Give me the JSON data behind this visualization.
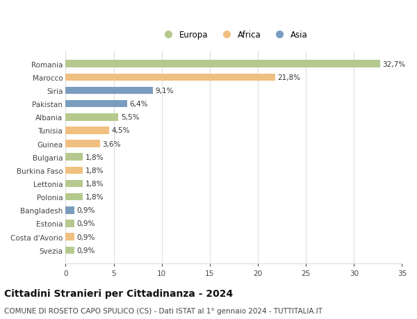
{
  "countries": [
    "Romania",
    "Marocco",
    "Siria",
    "Pakistan",
    "Albania",
    "Tunisia",
    "Guinea",
    "Bulgaria",
    "Burkina Faso",
    "Lettonia",
    "Polonia",
    "Bangladesh",
    "Estonia",
    "Costa d'Avorio",
    "Svezia"
  ],
  "values": [
    32.7,
    21.8,
    9.1,
    6.4,
    5.5,
    4.5,
    3.6,
    1.8,
    1.8,
    1.8,
    1.8,
    0.9,
    0.9,
    0.9,
    0.9
  ],
  "labels": [
    "32,7%",
    "21,8%",
    "9,1%",
    "6,4%",
    "5,5%",
    "4,5%",
    "3,6%",
    "1,8%",
    "1,8%",
    "1,8%",
    "1,8%",
    "0,9%",
    "0,9%",
    "0,9%",
    "0,9%"
  ],
  "colors": [
    "#b5c98e",
    "#f0c080",
    "#7a9cbf",
    "#7a9cbf",
    "#b5c98e",
    "#f0c080",
    "#f0c080",
    "#b5c98e",
    "#f0c080",
    "#b5c98e",
    "#b5c98e",
    "#7a9cbf",
    "#b5c98e",
    "#f0c080",
    "#b5c98e"
  ],
  "continents": [
    "Europa",
    "Africa",
    "Asia"
  ],
  "legend_colors": [
    "#b5c98e",
    "#f0c080",
    "#7a9cbf"
  ],
  "title": "Cittadini Stranieri per Cittadinanza - 2024",
  "subtitle": "COMUNE DI ROSETO CAPO SPULICO (CS) - Dati ISTAT al 1° gennaio 2024 - TUTTITALIA.IT",
  "xlim": [
    0,
    35
  ],
  "xticks": [
    0,
    5,
    10,
    15,
    20,
    25,
    30,
    35
  ],
  "bg_color": "#ffffff",
  "grid_color": "#dddddd",
  "bar_height": 0.55,
  "label_fontsize": 7.5,
  "title_fontsize": 10,
  "subtitle_fontsize": 7.5,
  "legend_fontsize": 8.5
}
